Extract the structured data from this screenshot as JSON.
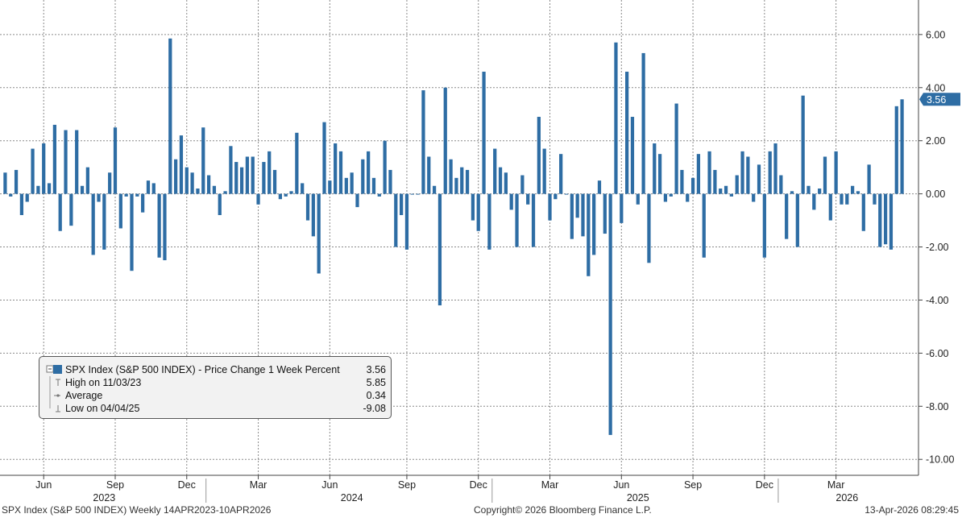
{
  "chart_data": {
    "type": "bar",
    "series": [
      {
        "name": "SPX Index (S&P 500 INDEX) - Price Change 1 Week Percent",
        "color": "#2e6da4",
        "values": [
          0.8,
          -0.1,
          0.9,
          -0.8,
          -0.3,
          1.7,
          0.3,
          1.9,
          0.4,
          2.6,
          -1.4,
          2.4,
          -1.2,
          2.4,
          0.3,
          1.0,
          -2.3,
          -0.3,
          -2.1,
          0.8,
          2.5,
          -1.3,
          -0.1,
          -2.9,
          -0.1,
          -0.7,
          0.5,
          0.4,
          -2.4,
          -2.5,
          5.85,
          1.3,
          2.2,
          1.0,
          0.8,
          0.2,
          2.5,
          0.7,
          0.3,
          -0.8,
          0.1,
          1.8,
          1.2,
          1.0,
          1.4,
          1.4,
          -0.4,
          1.2,
          1.6,
          0.9,
          -0.2,
          -0.1,
          0.1,
          2.3,
          0.4,
          -1.0,
          -1.6,
          -3.0,
          2.7,
          0.5,
          1.9,
          1.6,
          0.6,
          0.8,
          -0.5,
          1.3,
          1.6,
          0.6,
          -0.1,
          2.0,
          0.9,
          -2.0,
          -0.8,
          -2.1,
          0.0,
          0.0,
          3.9,
          1.4,
          0.3,
          -4.2,
          4.0,
          1.3,
          0.6,
          1.0,
          0.9,
          -1.0,
          -1.4,
          4.6,
          -2.1,
          1.7,
          1.0,
          0.8,
          -0.6,
          -2.0,
          0.7,
          -0.4,
          -2.0,
          2.9,
          1.7,
          -1.0,
          -0.2,
          1.5,
          0.0,
          -1.7,
          -0.9,
          -1.6,
          -3.1,
          -2.3,
          0.5,
          -1.5,
          -9.08,
          5.7,
          -1.1,
          4.6,
          2.9,
          -0.4,
          5.3,
          -2.6,
          1.9,
          1.5,
          -0.3,
          -0.1,
          3.4,
          0.9,
          -0.3,
          0.6,
          1.5,
          -2.4,
          1.6,
          0.9,
          0.2,
          0.3,
          -0.1,
          0.7,
          1.6,
          1.4,
          -0.3,
          1.1,
          -2.4,
          1.6,
          1.9,
          0.7,
          -1.7,
          0.1,
          -2.0,
          3.7,
          0.3,
          -0.6,
          0.2,
          1.4,
          -1.0,
          1.6,
          -0.4,
          -0.4,
          0.3,
          0.1,
          -1.4,
          1.1,
          -0.4,
          -2.0,
          -1.9,
          -2.1,
          3.3,
          3.56
        ]
      }
    ],
    "ylim": [
      -10.6,
      7.3
    ],
    "y_ticks": [
      "6.00",
      "4.00",
      "2.00",
      "0.00",
      "-2.00",
      "-4.00",
      "-6.00",
      "-8.00",
      "-10.00"
    ],
    "y_tick_values": [
      6,
      4,
      2,
      0,
      -2,
      -4,
      -6,
      -8,
      -10
    ],
    "month_ticks": [
      "Jun",
      "Sep",
      "Dec",
      "Mar",
      "Jun",
      "Sep",
      "Dec",
      "Mar",
      "Jun",
      "Sep",
      "Dec",
      "Mar"
    ],
    "month_tick_index": [
      7,
      20,
      33,
      46,
      59,
      73,
      86,
      99,
      112,
      125,
      138,
      151
    ],
    "year_labels": [
      "2023",
      "2024",
      "2025",
      "2026"
    ],
    "year_label_index": [
      18,
      63,
      115,
      153
    ],
    "year_divider_index": [
      37,
      89,
      141
    ],
    "last_value_label": "3.56",
    "grid": true,
    "legend": {
      "title": "SPX Index (S&P 500 INDEX) - Price Change 1 Week Percent",
      "title_value": "3.56",
      "high_label": "High on 11/03/23",
      "high_value": "5.85",
      "avg_label": "Average",
      "avg_value": "0.34",
      "low_label": "Low on 04/04/25",
      "low_value": "-9.08",
      "placement": "bottom-left"
    }
  },
  "footer": {
    "left": "SPX Index (S&P 500 INDEX) Weekly 14APR2023-10APR2026",
    "center": "Copyright© 2026 Bloomberg Finance L.P.",
    "right": "13-Apr-2026 08:29:45"
  }
}
